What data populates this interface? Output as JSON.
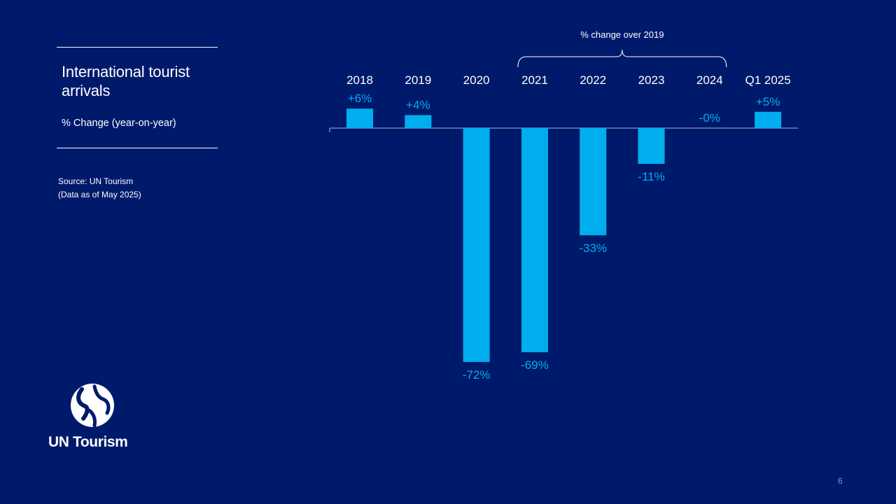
{
  "sidebar": {
    "title": "International tourist arrivals",
    "subtitle": "% Change (year-on-year)",
    "source_line1": "Source: UN Tourism",
    "source_line2": "(Data as of May 2025)"
  },
  "logo": {
    "text": "UN Tourism",
    "icon": "un-tourism-globe-icon"
  },
  "page_number": "6",
  "colors": {
    "background": "#001A6B",
    "bar": "#00AEEF",
    "label": "#00AEEF",
    "text": "#FFFFFF"
  },
  "chart_data": {
    "type": "bar",
    "title": "International tourist arrivals",
    "ylabel": "% Change (year-on-year)",
    "categories": [
      "2018",
      "2019",
      "2020",
      "2021",
      "2022",
      "2023",
      "2024",
      "Q1 2025"
    ],
    "values": [
      6,
      4,
      -72,
      -69,
      -33,
      -11,
      0,
      5
    ],
    "value_labels": [
      "+6%",
      "+4%",
      "-72%",
      "-69%",
      "-33%",
      "-11%",
      "-0%",
      "+5%"
    ],
    "bracket_label": "% change over 2019",
    "bracket_categories": [
      "2021",
      "2022",
      "2023",
      "2024"
    ],
    "ylim": [
      -75,
      10
    ],
    "grid": false,
    "legend": "none"
  }
}
